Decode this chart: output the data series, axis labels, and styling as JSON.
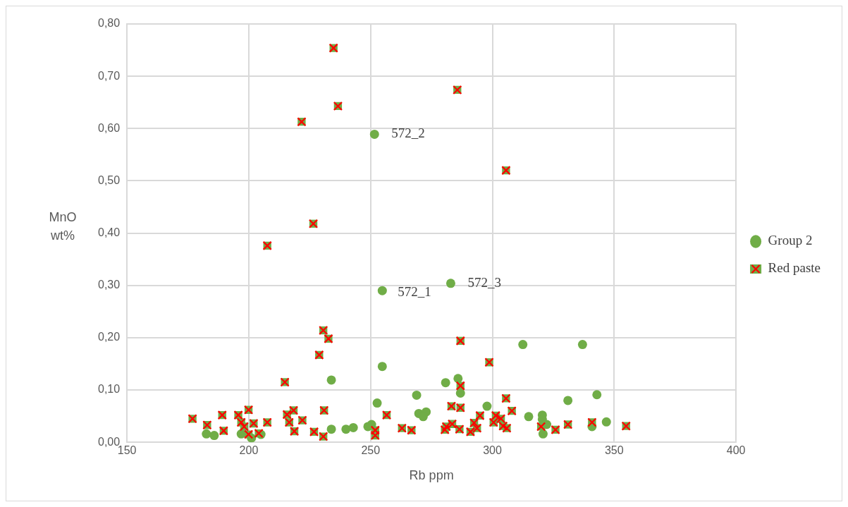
{
  "chart_data": {
    "type": "scatter",
    "xlabel": "Rb ppm",
    "ylabel": "MnO wt%",
    "xlim": [
      150,
      400
    ],
    "xticks": [
      150,
      200,
      250,
      300,
      350,
      400
    ],
    "ylim": [
      0,
      0.8
    ],
    "yticks": [
      {
        "value": 0,
        "label": "0,00"
      },
      {
        "value": 0.1,
        "label": "0,10"
      },
      {
        "value": 0.2,
        "label": "0,20"
      },
      {
        "value": 0.3,
        "label": "0,30"
      },
      {
        "value": 0.4,
        "label": "0,40"
      },
      {
        "value": 0.5,
        "label": "0,50"
      },
      {
        "value": 0.6,
        "label": "0,60"
      },
      {
        "value": 0.7,
        "label": "0,70"
      },
      {
        "value": 0.8,
        "label": "0,80"
      }
    ],
    "grid": true,
    "legend": "right",
    "series": [
      {
        "name": "Group 2",
        "color": "#70ad47",
        "marker": "circle",
        "x": [
          182.6,
          185.8,
          196.9,
          201.1,
          205.0,
          233.9,
          233.9,
          239.9,
          242.9,
          248.9,
          250.4,
          251.6,
          252.7,
          254.8,
          254.8,
          268.9,
          269.8,
          272.8,
          271.6,
          280.8,
          282.9,
          285.9,
          286.9,
          297.8,
          312.5,
          314.9,
          320.5,
          320.5,
          320.8,
          322.3,
          331.0,
          337.0,
          340.9,
          342.9,
          346.8
        ],
        "values": [
          0.016,
          0.013,
          0.016,
          0.008,
          0.015,
          0.025,
          0.119,
          0.025,
          0.028,
          0.03,
          0.034,
          0.589,
          0.075,
          0.29,
          0.145,
          0.09,
          0.055,
          0.058,
          0.049,
          0.114,
          0.304,
          0.122,
          0.094,
          0.069,
          0.187,
          0.049,
          0.052,
          0.044,
          0.016,
          0.034,
          0.08,
          0.187,
          0.03,
          0.091,
          0.039
        ]
      },
      {
        "name": "Red paste",
        "color": "#70ad47",
        "marker": "square",
        "x": [
          176.9,
          182.9,
          189.1,
          189.7,
          195.7,
          199.9,
          196.9,
          198.1,
          199.9,
          202.0,
          204.1,
          207.6,
          214.8,
          215.7,
          218.4,
          216.6,
          222.0,
          218.7,
          226.8,
          230.6,
          230.9,
          228.9,
          230.6,
          232.7,
          234.8,
          236.6,
          221.7,
          226.5,
          207.6,
          285.6,
          305.6,
          286.9,
          298.7,
          286.9,
          251.9,
          251.9,
          256.6,
          262.9,
          266.8,
          283.2,
          286.9,
          281.1,
          283.5,
          280.5,
          286.5,
          291.0,
          293.7,
          292.5,
          294.9,
          305.6,
          308.0,
          301.4,
          303.5,
          300.5,
          304.4,
          305.9,
          320.0,
          325.9,
          331.0,
          340.9,
          354.9
        ],
        "values": [
          0.045,
          0.033,
          0.052,
          0.022,
          0.052,
          0.062,
          0.038,
          0.03,
          0.015,
          0.036,
          0.017,
          0.038,
          0.115,
          0.053,
          0.061,
          0.038,
          0.042,
          0.021,
          0.02,
          0.011,
          0.061,
          0.167,
          0.214,
          0.198,
          0.754,
          0.643,
          0.613,
          0.418,
          0.376,
          0.674,
          0.52,
          0.194,
          0.153,
          0.108,
          0.023,
          0.013,
          0.052,
          0.027,
          0.023,
          0.069,
          0.066,
          0.03,
          0.035,
          0.024,
          0.025,
          0.02,
          0.027,
          0.037,
          0.051,
          0.084,
          0.06,
          0.051,
          0.045,
          0.038,
          0.031,
          0.027,
          0.03,
          0.024,
          0.034,
          0.038,
          0.031
        ]
      }
    ],
    "annotations": [
      {
        "text": "572_2",
        "x": 251.6,
        "y": 0.589
      },
      {
        "text": "572_1",
        "x": 254.8,
        "y": 0.29
      },
      {
        "text": "572_3",
        "x": 282.9,
        "y": 0.304
      }
    ]
  }
}
